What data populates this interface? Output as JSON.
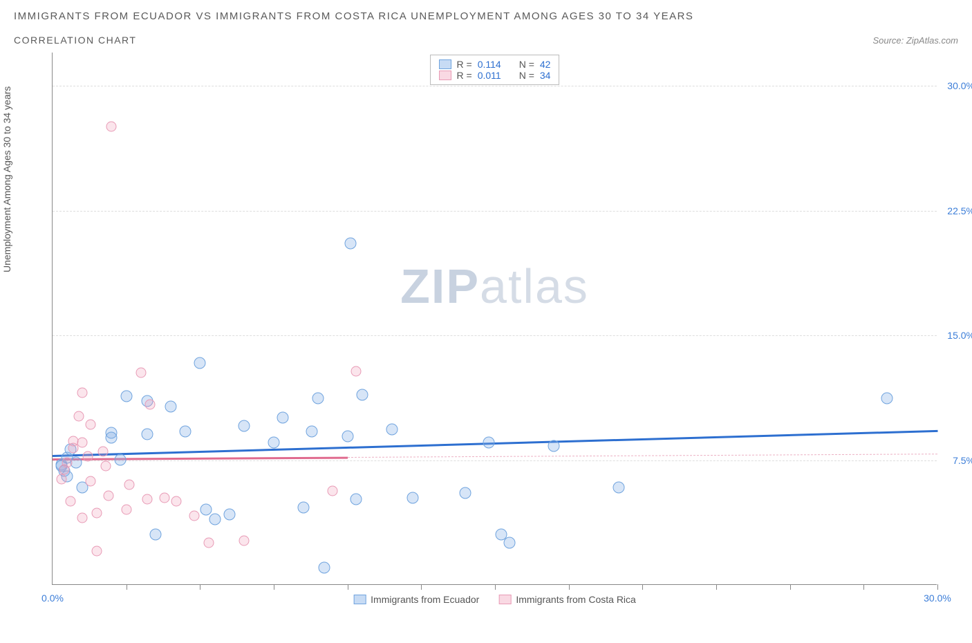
{
  "title": "IMMIGRANTS FROM ECUADOR VS IMMIGRANTS FROM COSTA RICA UNEMPLOYMENT AMONG AGES 30 TO 34 YEARS",
  "subtitle": "CORRELATION CHART",
  "source_label": "Source: ZipAtlas.com",
  "y_axis_label": "Unemployment Among Ages 30 to 34 years",
  "watermark_bold": "ZIP",
  "watermark_light": "atlas",
  "chart": {
    "type": "scatter",
    "xlim": [
      0,
      30
    ],
    "ylim": [
      0,
      32
    ],
    "x_tick_labels": [
      {
        "pos": 0,
        "label": "0.0%"
      },
      {
        "pos": 30,
        "label": "30.0%"
      }
    ],
    "x_minor_ticks": [
      2.5,
      5,
      7.5,
      10,
      12.5,
      15,
      17.5,
      20,
      22.5,
      25,
      27.5,
      30
    ],
    "y_ticks": [
      {
        "pos": 7.5,
        "label": "7.5%"
      },
      {
        "pos": 15,
        "label": "15.0%"
      },
      {
        "pos": 22.5,
        "label": "22.5%"
      },
      {
        "pos": 30,
        "label": "30.0%"
      }
    ],
    "background_color": "#ffffff",
    "grid_color": "#dddddd",
    "series": [
      {
        "name": "Immigrants from Ecuador",
        "color_fill": "rgba(130,175,230,0.32)",
        "color_stroke": "#6fa3de",
        "reg_color": "#2d6fd0",
        "r": "0.114",
        "n": "42",
        "regression": {
          "x1": 0,
          "y1": 7.8,
          "x2": 30,
          "y2": 9.3,
          "solid_until_x": 30
        },
        "points": [
          [
            0.3,
            7.2
          ],
          [
            0.3,
            7.1
          ],
          [
            0.4,
            6.8
          ],
          [
            0.5,
            7.6
          ],
          [
            0.6,
            8.1
          ],
          [
            0.5,
            6.5
          ],
          [
            0.8,
            7.3
          ],
          [
            1.0,
            5.8
          ],
          [
            2.0,
            9.1
          ],
          [
            2.0,
            8.8
          ],
          [
            2.3,
            7.5
          ],
          [
            3.2,
            9.0
          ],
          [
            3.2,
            11.0
          ],
          [
            2.5,
            11.3
          ],
          [
            3.5,
            3.0
          ],
          [
            4.0,
            10.7
          ],
          [
            4.5,
            9.2
          ],
          [
            5.0,
            13.3
          ],
          [
            5.2,
            4.5
          ],
          [
            5.5,
            3.9
          ],
          [
            6.0,
            4.2
          ],
          [
            6.5,
            9.5
          ],
          [
            7.5,
            8.5
          ],
          [
            7.8,
            10.0
          ],
          [
            8.5,
            4.6
          ],
          [
            8.8,
            9.2
          ],
          [
            9.0,
            11.2
          ],
          [
            9.2,
            1.0
          ],
          [
            10.0,
            8.9
          ],
          [
            10.1,
            20.5
          ],
          [
            10.3,
            5.1
          ],
          [
            10.5,
            11.4
          ],
          [
            11.5,
            9.3
          ],
          [
            12.2,
            5.2
          ],
          [
            14.0,
            5.5
          ],
          [
            14.8,
            8.5
          ],
          [
            15.2,
            3.0
          ],
          [
            15.5,
            2.5
          ],
          [
            17.0,
            8.3
          ],
          [
            19.2,
            5.8
          ],
          [
            28.3,
            11.2
          ]
        ]
      },
      {
        "name": "Immigrants from Costa Rica",
        "color_fill": "rgba(240,160,185,0.28)",
        "color_stroke": "#e89ab5",
        "reg_color": "#e06b8f",
        "r": "0.011",
        "n": "34",
        "regression": {
          "x1": 0,
          "y1": 7.6,
          "x2": 30,
          "y2": 7.9,
          "solid_until_x": 10
        },
        "points": [
          [
            0.3,
            6.3
          ],
          [
            0.4,
            6.9
          ],
          [
            0.5,
            7.3
          ],
          [
            0.6,
            5.0
          ],
          [
            0.7,
            8.2
          ],
          [
            0.7,
            8.6
          ],
          [
            0.9,
            10.1
          ],
          [
            1.0,
            8.5
          ],
          [
            1.0,
            11.5
          ],
          [
            1.0,
            4.0
          ],
          [
            1.2,
            7.7
          ],
          [
            1.3,
            9.6
          ],
          [
            1.3,
            6.2
          ],
          [
            1.5,
            4.3
          ],
          [
            1.5,
            2.0
          ],
          [
            1.7,
            8.0
          ],
          [
            1.8,
            7.1
          ],
          [
            1.9,
            5.3
          ],
          [
            2.0,
            27.5
          ],
          [
            2.5,
            4.5
          ],
          [
            2.6,
            6.0
          ],
          [
            3.0,
            12.7
          ],
          [
            3.2,
            5.1
          ],
          [
            3.3,
            10.8
          ],
          [
            3.8,
            5.2
          ],
          [
            4.2,
            5.0
          ],
          [
            4.8,
            4.1
          ],
          [
            5.3,
            2.5
          ],
          [
            6.5,
            2.6
          ],
          [
            9.5,
            5.6
          ],
          [
            10.3,
            12.8
          ]
        ]
      }
    ],
    "legend_box": {
      "rows": [
        {
          "swatch": "blue",
          "r_label": "R =",
          "r_val": "0.114",
          "n_label": "N =",
          "n_val": "42"
        },
        {
          "swatch": "pink",
          "r_label": "R =",
          "r_val": "0.011",
          "n_label": "N =",
          "n_val": "34"
        }
      ]
    },
    "bottom_legend": [
      {
        "swatch": "blue",
        "label": "Immigrants from Ecuador"
      },
      {
        "swatch": "pink",
        "label": "Immigrants from Costa Rica"
      }
    ]
  }
}
